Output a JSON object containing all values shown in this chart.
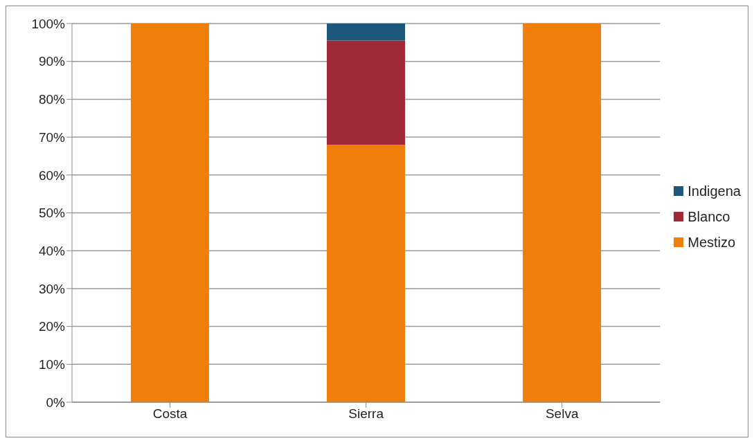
{
  "chart_data": {
    "type": "bar",
    "stacked": true,
    "categories": [
      "Costa",
      "Sierra",
      "Selva"
    ],
    "series": [
      {
        "name": "Mestizo",
        "color": "#ef7f0a",
        "values": [
          100,
          68,
          100
        ]
      },
      {
        "name": "Blanco",
        "color": "#a02a37",
        "values": [
          0,
          27.5,
          0
        ]
      },
      {
        "name": "Indigena",
        "color": "#1d577a",
        "values": [
          0,
          4.5,
          0
        ]
      }
    ],
    "ylim": [
      0,
      100
    ],
    "yticks": [
      {
        "value": 0,
        "label": "0%"
      },
      {
        "value": 10,
        "label": "10%"
      },
      {
        "value": 20,
        "label": "20%"
      },
      {
        "value": 30,
        "label": "30%"
      },
      {
        "value": 40,
        "label": "40%"
      },
      {
        "value": 50,
        "label": "50%"
      },
      {
        "value": 60,
        "label": "60%"
      },
      {
        "value": 70,
        "label": "70%"
      },
      {
        "value": 80,
        "label": "80%"
      },
      {
        "value": 90,
        "label": "90%"
      },
      {
        "value": 100,
        "label": "100%"
      }
    ],
    "grid": "y",
    "legend": "right"
  }
}
